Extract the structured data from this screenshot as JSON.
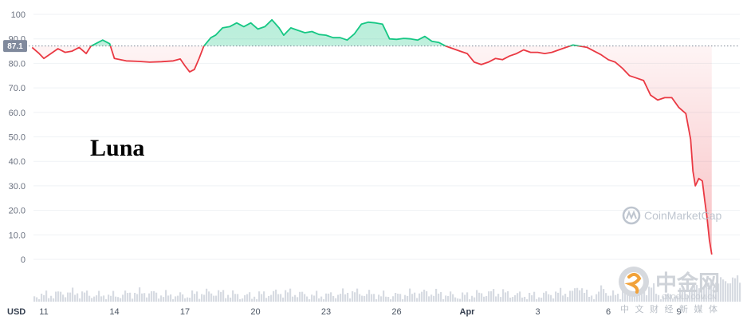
{
  "chart_data": {
    "type": "line",
    "title": "Luna",
    "currency": "USD",
    "current_price_label": "87.1",
    "reference_value": 87.1,
    "ylim": [
      0,
      100
    ],
    "y_ticks": [
      {
        "value": 0,
        "label": "0"
      },
      {
        "value": 10,
        "label": "10.0"
      },
      {
        "value": 20,
        "label": "20.0"
      },
      {
        "value": 30,
        "label": "30.0"
      },
      {
        "value": 40,
        "label": "40.0"
      },
      {
        "value": 50,
        "label": "50.0"
      },
      {
        "value": 60,
        "label": "60.0"
      },
      {
        "value": 70,
        "label": "70.0"
      },
      {
        "value": 80,
        "label": "80.0"
      },
      {
        "value": 90,
        "label": "90.0"
      },
      {
        "value": 100,
        "label": "100"
      }
    ],
    "x_ticks": [
      {
        "day": 11,
        "label": "11"
      },
      {
        "day": 14,
        "label": "14"
      },
      {
        "day": 17,
        "label": "17"
      },
      {
        "day": 20,
        "label": "20"
      },
      {
        "day": 23,
        "label": "23"
      },
      {
        "day": 26,
        "label": "26"
      },
      {
        "day": 29,
        "label": "Apr"
      },
      {
        "day": 32,
        "label": "3"
      },
      {
        "day": 35,
        "label": "6"
      },
      {
        "day": 38,
        "label": "9"
      }
    ],
    "xlim": [
      10.5,
      39.4
    ],
    "series": [
      {
        "points": [
          [
            10.5,
            86.5
          ],
          [
            10.8,
            84.0
          ],
          [
            11.0,
            82.0
          ],
          [
            11.3,
            84.0
          ],
          [
            11.6,
            86.0
          ],
          [
            11.9,
            84.5
          ],
          [
            12.2,
            85.0
          ],
          [
            12.5,
            86.5
          ],
          [
            12.8,
            84.0
          ],
          [
            13.0,
            87.0
          ],
          [
            13.2,
            88.0
          ],
          [
            13.5,
            89.5
          ],
          [
            13.8,
            88.0
          ],
          [
            14.0,
            82.0
          ],
          [
            14.5,
            81.0
          ],
          [
            15.0,
            80.8
          ],
          [
            15.5,
            80.5
          ],
          [
            16.0,
            80.7
          ],
          [
            16.5,
            81.0
          ],
          [
            16.8,
            81.8
          ],
          [
            17.0,
            79.0
          ],
          [
            17.2,
            76.5
          ],
          [
            17.4,
            77.5
          ],
          [
            17.6,
            82.0
          ],
          [
            17.8,
            87.0
          ],
          [
            18.1,
            90.5
          ],
          [
            18.3,
            91.5
          ],
          [
            18.6,
            94.5
          ],
          [
            18.9,
            95.0
          ],
          [
            19.2,
            96.5
          ],
          [
            19.5,
            95.0
          ],
          [
            19.8,
            96.5
          ],
          [
            20.1,
            94.0
          ],
          [
            20.4,
            95.0
          ],
          [
            20.7,
            97.8
          ],
          [
            21.0,
            94.5
          ],
          [
            21.2,
            91.5
          ],
          [
            21.5,
            94.5
          ],
          [
            21.8,
            93.5
          ],
          [
            22.1,
            92.5
          ],
          [
            22.4,
            93.0
          ],
          [
            22.7,
            91.8
          ],
          [
            23.0,
            91.5
          ],
          [
            23.3,
            90.5
          ],
          [
            23.6,
            90.5
          ],
          [
            23.9,
            89.5
          ],
          [
            24.2,
            92.0
          ],
          [
            24.5,
            96.0
          ],
          [
            24.8,
            96.8
          ],
          [
            25.1,
            96.5
          ],
          [
            25.4,
            96.0
          ],
          [
            25.7,
            90.0
          ],
          [
            26.0,
            89.8
          ],
          [
            26.3,
            90.2
          ],
          [
            26.6,
            90.0
          ],
          [
            26.9,
            89.5
          ],
          [
            27.2,
            91.0
          ],
          [
            27.5,
            89.0
          ],
          [
            27.8,
            88.5
          ],
          [
            28.1,
            87.0
          ],
          [
            28.4,
            86.0
          ],
          [
            28.7,
            85.0
          ],
          [
            29.0,
            84.0
          ],
          [
            29.3,
            80.5
          ],
          [
            29.6,
            79.5
          ],
          [
            29.9,
            80.5
          ],
          [
            30.2,
            82.0
          ],
          [
            30.5,
            81.5
          ],
          [
            30.8,
            83.0
          ],
          [
            31.1,
            84.0
          ],
          [
            31.4,
            85.5
          ],
          [
            31.7,
            84.5
          ],
          [
            32.0,
            84.5
          ],
          [
            32.3,
            84.0
          ],
          [
            32.6,
            84.5
          ],
          [
            32.9,
            85.5
          ],
          [
            33.2,
            86.5
          ],
          [
            33.5,
            87.5
          ],
          [
            33.8,
            87.0
          ],
          [
            34.1,
            86.5
          ],
          [
            34.4,
            85.0
          ],
          [
            34.7,
            83.5
          ],
          [
            35.0,
            81.5
          ],
          [
            35.3,
            80.5
          ],
          [
            35.6,
            78.0
          ],
          [
            35.9,
            75.0
          ],
          [
            36.2,
            74.0
          ],
          [
            36.5,
            73.0
          ],
          [
            36.8,
            67.0
          ],
          [
            37.1,
            65.0
          ],
          [
            37.4,
            66.0
          ],
          [
            37.7,
            66.0
          ],
          [
            38.0,
            62.0
          ],
          [
            38.3,
            59.5
          ],
          [
            38.5,
            49.0
          ],
          [
            38.6,
            36.0
          ],
          [
            38.7,
            30.0
          ],
          [
            38.85,
            33.0
          ],
          [
            39.0,
            32.0
          ],
          [
            39.1,
            24.0
          ],
          [
            39.2,
            17.0
          ],
          [
            39.3,
            8.0
          ],
          [
            39.4,
            2.0
          ]
        ]
      }
    ],
    "up_color": "#16c784",
    "down_color": "#ea3943",
    "watermark": "CoinMarketCap",
    "source_logo": {
      "name": "中金网",
      "subtitle": "中 文 财 经 新 媒 体",
      "url": "CNGOLD.COM.CN"
    }
  }
}
